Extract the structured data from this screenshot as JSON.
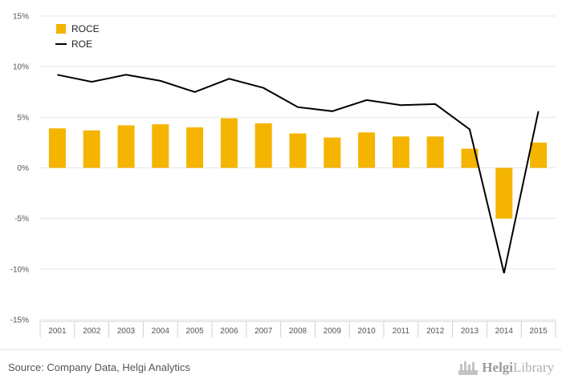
{
  "chart_data": {
    "type": "bar+line",
    "categories": [
      "2001",
      "2002",
      "2003",
      "2004",
      "2005",
      "2006",
      "2007",
      "2008",
      "2009",
      "2010",
      "2011",
      "2012",
      "2013",
      "2014",
      "2015"
    ],
    "series": [
      {
        "name": "ROCE",
        "type": "bar",
        "color": "#f5b400",
        "values": [
          3.9,
          3.7,
          4.2,
          4.3,
          4.0,
          4.9,
          4.4,
          3.4,
          3.0,
          3.5,
          3.1,
          3.1,
          1.9,
          -5.0,
          2.5
        ]
      },
      {
        "name": "ROE",
        "type": "line",
        "color": "#000000",
        "values": [
          9.2,
          8.5,
          9.2,
          8.6,
          7.5,
          8.8,
          7.9,
          6.0,
          5.6,
          6.7,
          6.2,
          6.3,
          3.8,
          -10.4,
          5.6
        ]
      }
    ],
    "ylim": [
      -15,
      15
    ],
    "yticks": [
      15,
      10,
      5,
      0,
      -5,
      -10,
      -15
    ],
    "ytick_labels": [
      "15%",
      "10%",
      "5%",
      "0%",
      "-5%",
      "-10%",
      "-15%"
    ],
    "legend": [
      "ROCE",
      "ROE"
    ],
    "grid": true
  },
  "footer": {
    "source": "Source: Company Data, Helgi Analytics",
    "logo_main": "Helgi",
    "logo_suffix": "Library"
  }
}
